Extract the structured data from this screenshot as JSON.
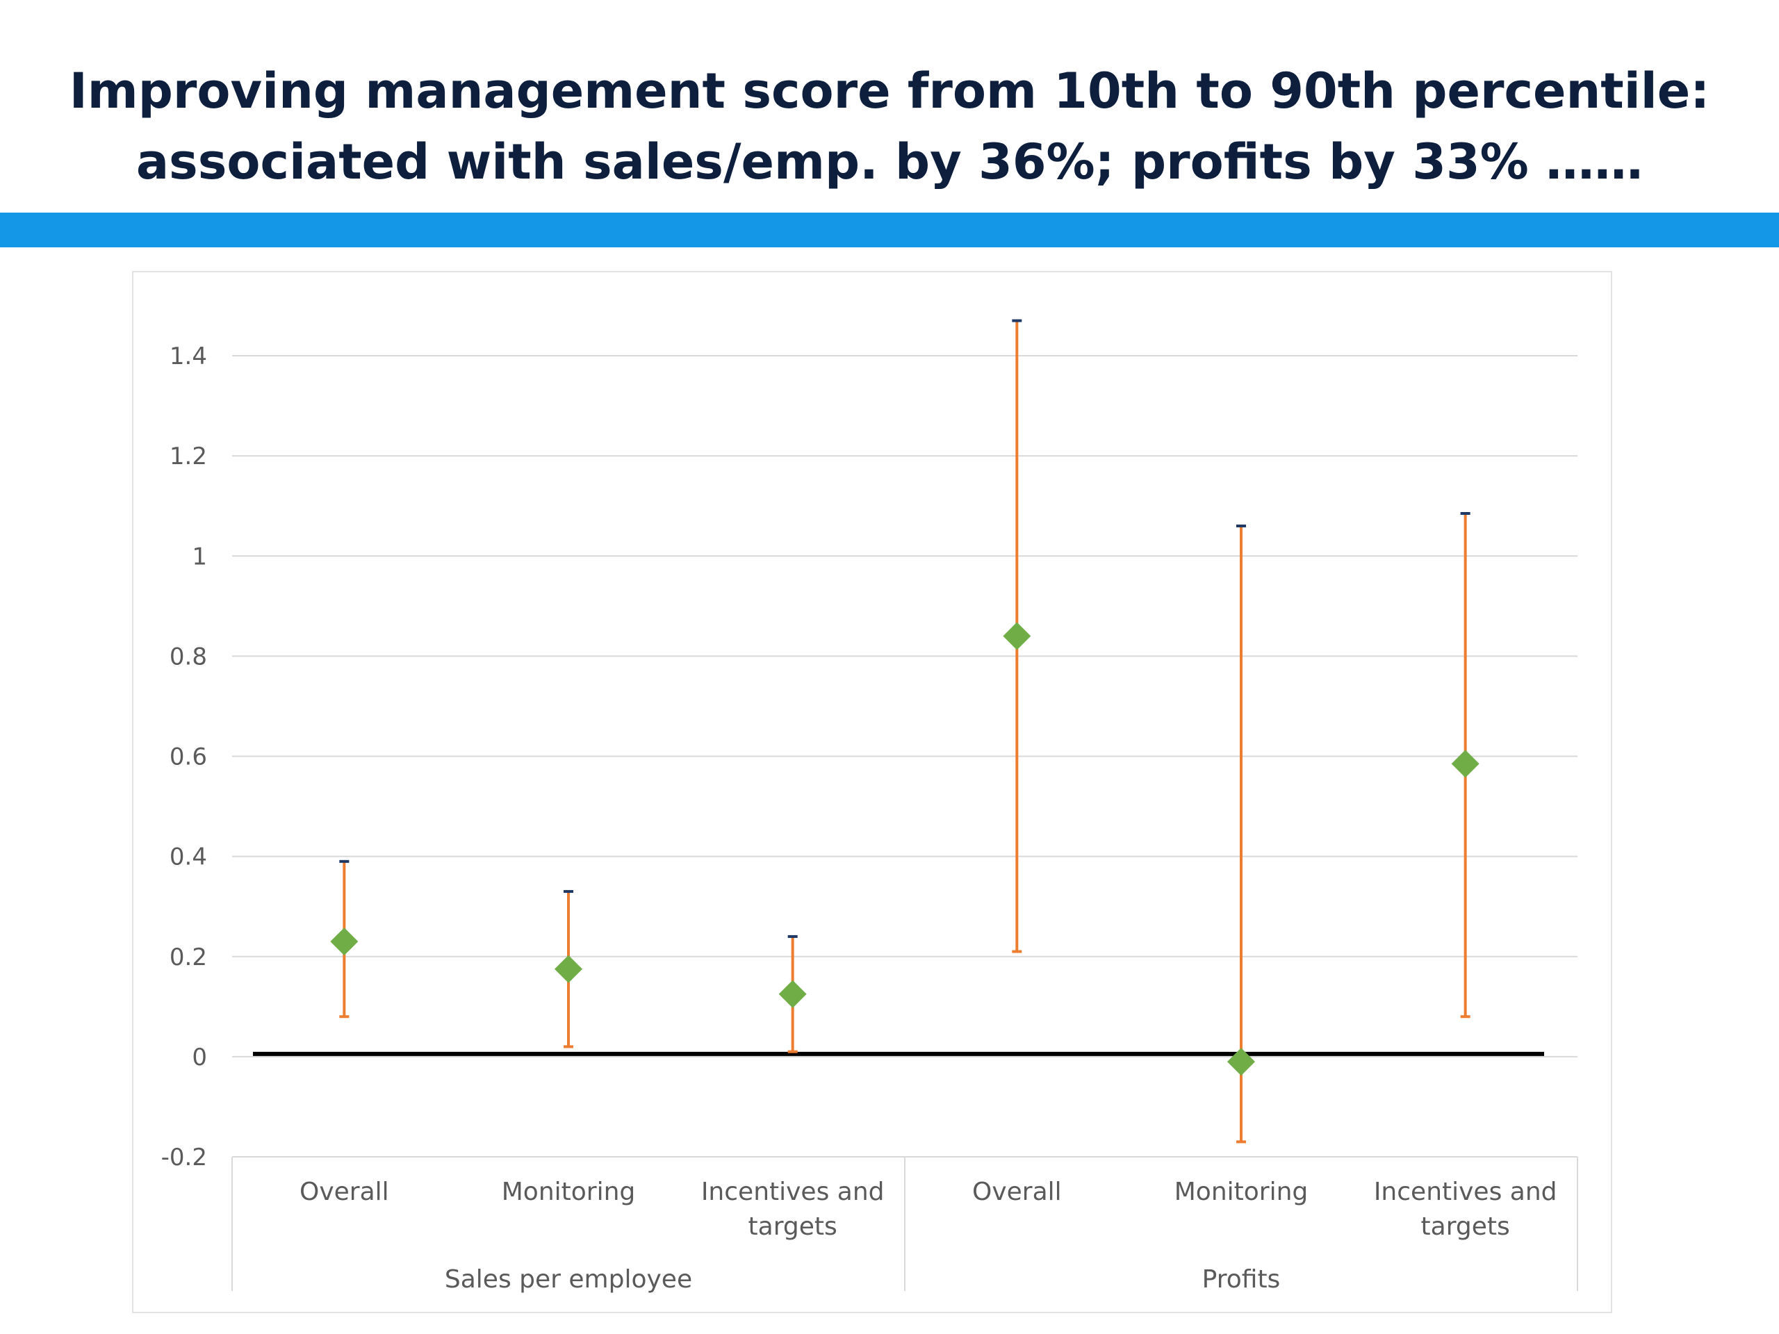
{
  "title": {
    "line1": "Improving management score from 10th to 90th percentile:",
    "line2": "associated with sales/emp. by 36%; profits by 33% ……"
  },
  "colors": {
    "title_text": "#0d1f3c",
    "accent_bar": "#1597e8",
    "error_bar": "#ed7d31",
    "marker": "#70ad47",
    "zero_line": "#000000",
    "gridline": "#d9d9d9",
    "axis_text": "#5a5a5a"
  },
  "chart_data": {
    "type": "scatter",
    "subtype": "point-estimate-with-error-bars",
    "marker_shape": "diamond",
    "ylim": [
      -0.2,
      1.4
    ],
    "yticks": [
      "-0.2",
      "0",
      "0.2",
      "0.4",
      "0.6",
      "0.8",
      "1",
      "1.2",
      "1.4"
    ],
    "ytick_values": [
      -0.2,
      0,
      0.2,
      0.4,
      0.6,
      0.8,
      1,
      1.2,
      1.4
    ],
    "grid": true,
    "zero_line": true,
    "groups": [
      {
        "label": "Sales per employee",
        "categories": [
          {
            "label_lines": [
              "Overall"
            ],
            "value": 0.23,
            "low": 0.08,
            "high": 0.39
          },
          {
            "label_lines": [
              "Monitoring"
            ],
            "value": 0.175,
            "low": 0.02,
            "high": 0.33
          },
          {
            "label_lines": [
              "Incentives and",
              "targets"
            ],
            "value": 0.125,
            "low": 0.01,
            "high": 0.24
          }
        ]
      },
      {
        "label": "Profits",
        "categories": [
          {
            "label_lines": [
              "Overall"
            ],
            "value": 0.84,
            "low": 0.21,
            "high": 1.47
          },
          {
            "label_lines": [
              "Monitoring"
            ],
            "value": -0.01,
            "low": -0.17,
            "high": 1.06
          },
          {
            "label_lines": [
              "Incentives and",
              "targets"
            ],
            "value": 0.585,
            "low": 0.08,
            "high": 1.085
          }
        ]
      }
    ]
  }
}
